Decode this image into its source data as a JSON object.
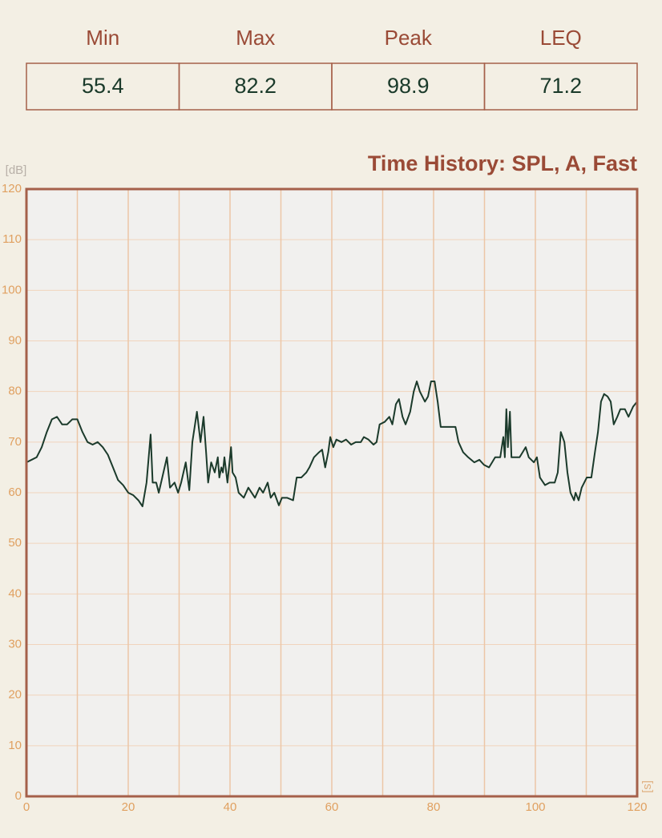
{
  "stats": {
    "labels": [
      "Min",
      "Max",
      "Peak",
      "LEQ"
    ],
    "values": [
      55.4,
      82.2,
      98.9,
      71.2
    ]
  },
  "chart_data": {
    "type": "line",
    "title": "Time History: SPL, A, Fast",
    "y_unit": "[dB]",
    "x_unit": "[s]",
    "xlim": [
      0,
      120
    ],
    "xticks": [
      0,
      20,
      40,
      60,
      80,
      100,
      120
    ],
    "xminorticks": [
      10,
      30,
      50,
      70,
      90,
      110
    ],
    "ylim": [
      0,
      120
    ],
    "yticks": [
      0,
      10,
      20,
      30,
      40,
      50,
      60,
      70,
      80,
      90,
      100,
      110,
      120
    ],
    "grid": true,
    "color": "#1b3a2b",
    "x": [
      0,
      1,
      2,
      3,
      4,
      5,
      6,
      7,
      8,
      9,
      10,
      11,
      12,
      13,
      14,
      15,
      16,
      17,
      18,
      19,
      20,
      21,
      22,
      22.8,
      23.6,
      24.4,
      24.8,
      25.5,
      26,
      27.6,
      28.2,
      29.1,
      29.8,
      30.4,
      31.3,
      32,
      32.6,
      33.5,
      34.2,
      34.8,
      35.3,
      35.7,
      36.3,
      37,
      37.6,
      37.9,
      38.3,
      38.6,
      38.9,
      39.5,
      40.2,
      40.5,
      41.1,
      41.7,
      42.7,
      43.6,
      44.9,
      45.8,
      46.5,
      47.4,
      48,
      48.7,
      49.6,
      50.2,
      51.2,
      52.4,
      53.1,
      54,
      55,
      55.6,
      56.5,
      57.5,
      58.1,
      58.7,
      59.3,
      59.7,
      60.3,
      60.9,
      61.9,
      62.8,
      63.8,
      64.7,
      65.7,
      66.3,
      67.2,
      68.2,
      68.8,
      69.4,
      70.4,
      71.3,
      71.9,
      72.6,
      73.2,
      73.9,
      74.5,
      75.4,
      76.1,
      76.7,
      77.3,
      78.3,
      78.9,
      79.5,
      80.2,
      80.8,
      81.4,
      82.4,
      83.3,
      84.3,
      84.9,
      85.8,
      86.8,
      88,
      89,
      89.9,
      90.9,
      91.5,
      92.1,
      93.1,
      93.7,
      94,
      94.3,
      94.6,
      95,
      95.3,
      95.9,
      96.9,
      97.5,
      98.1,
      98.7,
      99.7,
      100.3,
      100.9,
      101.9,
      102.8,
      103.8,
      104.4,
      105,
      105.7,
      106.3,
      106.9,
      107.6,
      107.9,
      108.5,
      109.1,
      110.1,
      111,
      111.7,
      112.3,
      112.9,
      113.5,
      114.2,
      114.8,
      115.4,
      116.1,
      116.7,
      117.6,
      118.3,
      119.2,
      120
    ],
    "values": [
      66,
      66.5,
      67,
      69,
      72,
      74.5,
      75,
      73.5,
      73.5,
      74.5,
      74.5,
      72,
      70,
      69.5,
      70,
      69,
      67.5,
      65,
      62.5,
      61.5,
      60,
      59.5,
      58.5,
      57.3,
      62,
      71.5,
      62,
      62,
      60,
      67,
      61,
      62,
      60,
      62,
      66,
      60.5,
      70,
      76,
      70,
      75,
      68,
      62,
      66,
      64,
      67,
      63,
      65,
      64,
      67,
      62,
      69,
      64,
      63,
      60,
      59,
      61,
      59,
      61,
      60,
      62,
      59,
      60,
      57.5,
      59,
      59,
      58.5,
      63,
      63,
      64,
      65,
      67,
      68,
      68.5,
      65,
      68,
      71,
      69,
      70.5,
      70,
      70.5,
      69.5,
      70,
      70,
      71,
      70.5,
      69.5,
      70,
      73.5,
      74,
      75,
      73.5,
      77.5,
      78.5,
      75,
      73.5,
      76,
      80,
      82,
      80,
      78,
      79,
      82,
      82,
      78,
      73,
      73,
      73,
      73,
      70,
      68,
      67,
      66,
      66.5,
      65.5,
      65,
      66,
      67,
      67,
      71,
      67,
      76.5,
      69,
      76,
      67,
      67,
      67,
      68,
      69,
      67,
      66,
      67,
      63,
      61.5,
      62,
      62,
      64,
      72,
      70,
      64,
      60,
      58.5,
      60,
      58.5,
      61,
      63,
      63,
      68,
      72,
      78,
      79.5,
      79,
      78,
      73.5,
      75,
      76.5,
      76.5,
      75,
      77,
      78
    ]
  }
}
